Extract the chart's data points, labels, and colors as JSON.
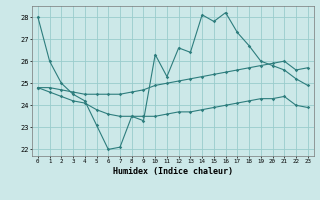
{
  "x": [
    0,
    1,
    2,
    3,
    4,
    5,
    6,
    7,
    8,
    9,
    10,
    11,
    12,
    13,
    14,
    15,
    16,
    17,
    18,
    19,
    20,
    21,
    22,
    23
  ],
  "main_line": [
    28,
    26,
    25,
    24.5,
    24.2,
    23.1,
    22.0,
    22.1,
    23.5,
    23.3,
    26.3,
    25.3,
    26.6,
    26.4,
    28.1,
    27.8,
    28.2,
    27.3,
    26.7,
    26.0,
    25.8,
    25.6,
    25.2,
    24.9
  ],
  "upper_line": [
    24.8,
    24.8,
    24.7,
    24.6,
    24.5,
    24.5,
    24.5,
    24.5,
    24.6,
    24.7,
    24.9,
    25.0,
    25.1,
    25.2,
    25.3,
    25.4,
    25.5,
    25.6,
    25.7,
    25.8,
    25.9,
    26.0,
    25.6,
    25.7
  ],
  "lower_line": [
    24.8,
    24.6,
    24.4,
    24.2,
    24.1,
    23.8,
    23.6,
    23.5,
    23.5,
    23.5,
    23.5,
    23.6,
    23.7,
    23.7,
    23.8,
    23.9,
    24.0,
    24.1,
    24.2,
    24.3,
    24.3,
    24.4,
    24.0,
    23.9
  ],
  "ylabel_ticks": [
    22,
    23,
    24,
    25,
    26,
    27,
    28
  ],
  "xlabel": "Humidex (Indice chaleur)",
  "bg_color": "#cce8e8",
  "line_color": "#2d7d7d",
  "grid_color": "#99cccc",
  "xlim": [
    -0.5,
    23.5
  ],
  "ylim": [
    21.7,
    28.5
  ],
  "figsize": [
    3.2,
    2.0
  ],
  "dpi": 100
}
